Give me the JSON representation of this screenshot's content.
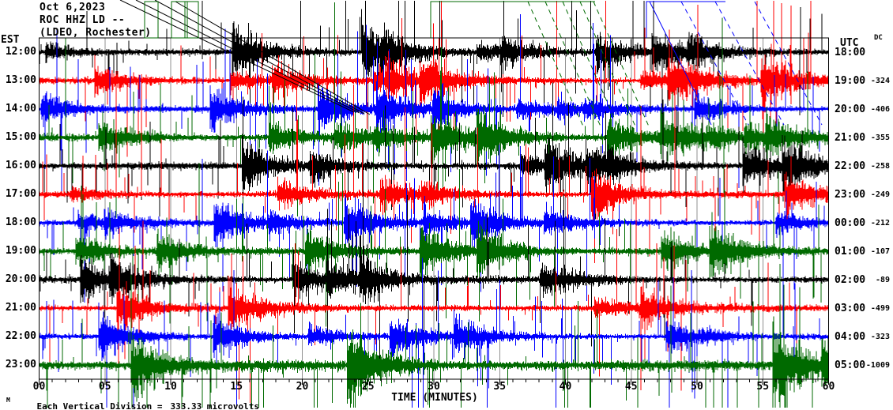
{
  "title": {
    "date": "Oct 6,2023",
    "station": "ROC HHZ LD --",
    "network": "(LDEO, Rochester)"
  },
  "left_axis": {
    "header": "EST"
  },
  "right_axis": {
    "header": "UTC"
  },
  "dc_column": {
    "header": "DC"
  },
  "x_axis": {
    "title": "TIME (MINUTES)",
    "ticks": [
      "00",
      "05",
      "10",
      "15",
      "20",
      "25",
      "30",
      "35",
      "40",
      "45",
      "50",
      "55",
      "60"
    ],
    "major_tick_minutes": 5,
    "minor_tick_minutes": 1
  },
  "footer": {
    "scale_label": "Each Vertical Division =",
    "scale_value": "333.33 microvolts",
    "logo_mark": "M"
  },
  "colors": {
    "black": "#000000",
    "red": "#ff0000",
    "blue": "#0000ff",
    "green": "#006a00",
    "grid": "#909090",
    "border": "#000000"
  },
  "chart_data": {
    "type": "line",
    "description": "Webicorder / helicorder seismogram: 12 hourly traces of continuous seismic noise, one row per hour, 60 minutes per row. Waveform is dense broadband noise with frequent high-amplitude spikes that overlap adjacent rows; largest excursions are drawn as diagonal fly-back lines and clipping boxes above the plot frame.",
    "x_range_minutes": [
      0,
      60
    ],
    "row_duration_minutes": 60,
    "grid_interval_minutes": 5,
    "vertical_division_microvolts": 333.33,
    "trace_color_cycle": [
      "#000000",
      "#ff0000",
      "#0000ff",
      "#006a00"
    ],
    "rows": [
      {
        "est": "12:00",
        "utc": "18:00",
        "dc": "",
        "color": "#000000"
      },
      {
        "est": "13:00",
        "utc": "19:00",
        "dc": "-324",
        "color": "#ff0000"
      },
      {
        "est": "14:00",
        "utc": "20:00",
        "dc": "-406",
        "color": "#0000ff"
      },
      {
        "est": "15:00",
        "utc": "21:00",
        "dc": "-355",
        "color": "#006a00"
      },
      {
        "est": "16:00",
        "utc": "22:00",
        "dc": "-258",
        "color": "#000000"
      },
      {
        "est": "17:00",
        "utc": "23:00",
        "dc": "-249",
        "color": "#ff0000"
      },
      {
        "est": "18:00",
        "utc": "00:00",
        "dc": "-212",
        "color": "#0000ff"
      },
      {
        "est": "19:00",
        "utc": "01:00",
        "dc": "-107",
        "color": "#006a00"
      },
      {
        "est": "20:00",
        "utc": "02:00",
        "dc": "-89",
        "color": "#000000"
      },
      {
        "est": "21:00",
        "utc": "03:00",
        "dc": "-499",
        "color": "#ff0000"
      },
      {
        "est": "22:00",
        "utc": "04:00",
        "dc": "-323",
        "color": "#0000ff"
      },
      {
        "est": "23:00",
        "utc": "05:00",
        "dc": "-1009",
        "color": "#006a00"
      }
    ]
  }
}
